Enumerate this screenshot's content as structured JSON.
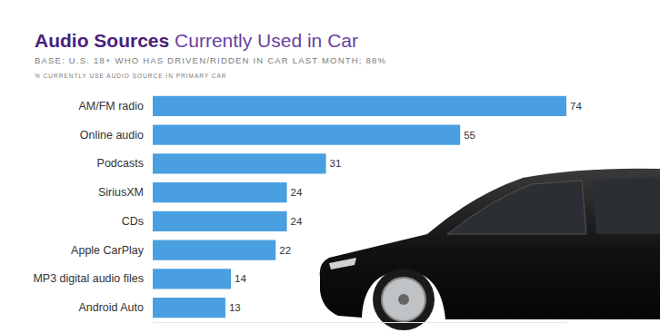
{
  "chart_data": {
    "type": "bar",
    "orientation": "horizontal",
    "title": "Audio Sources Currently Used in Car",
    "subtitle": "BASE: U.S. 18+ WHO HAS DRIVEN/RIDDEN IN CAR LAST MONTH; 88%",
    "annotations": [
      "% CURRENTLY USE AUDIO SOURCE IN PRIMARY CAR"
    ],
    "categories": [
      "AM/FM radio",
      "Online audio",
      "Podcasts",
      "SiriusXM",
      "CDs",
      "Apple CarPlay",
      "MP3 digital audio files",
      "Android Auto"
    ],
    "values": [
      74,
      55,
      31,
      24,
      24,
      22,
      14,
      13
    ],
    "color": "#4a9fe0",
    "xlim": [
      0,
      74
    ],
    "xticks": [],
    "data_labels": true,
    "tick_labels": "y",
    "grid": false
  }
}
